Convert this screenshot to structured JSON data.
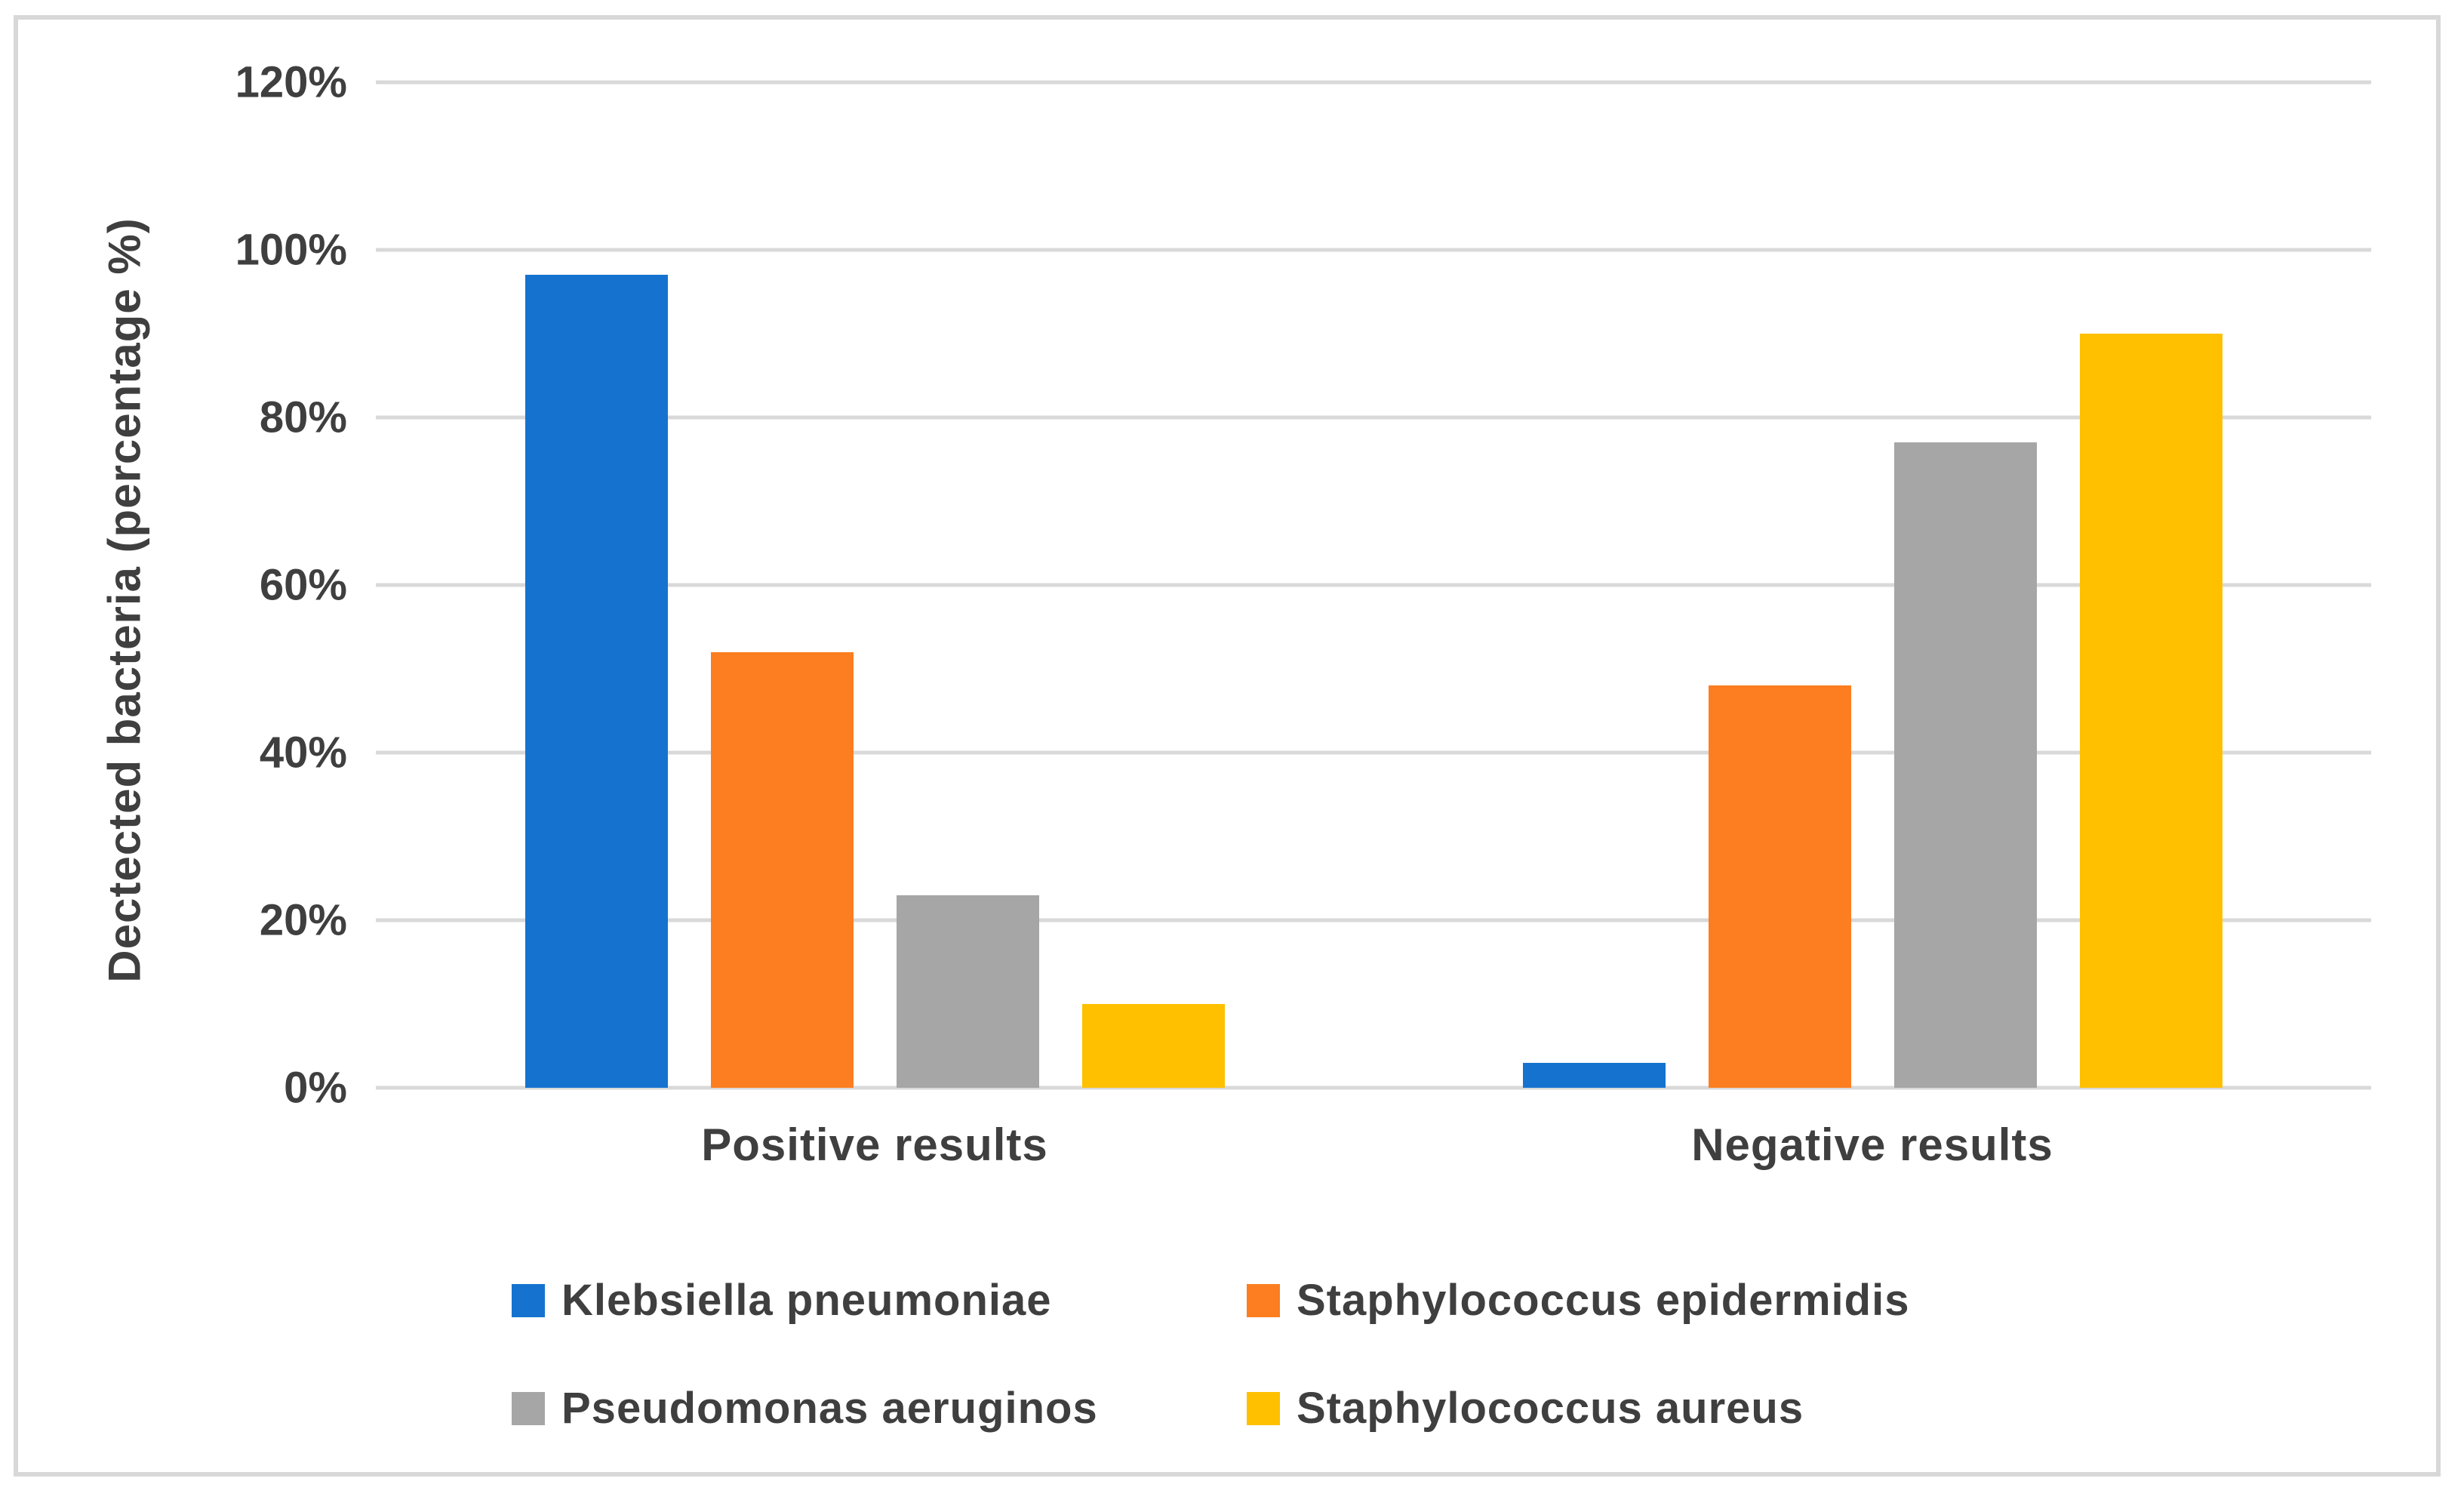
{
  "chart_data": {
    "type": "bar",
    "title": "",
    "xlabel": "",
    "ylabel": "Dectected bacteria (percentage %)",
    "categories": [
      "Positive results",
      "Negative results"
    ],
    "series": [
      {
        "name": "Klebsiella pneumoniae",
        "color": "#1573CF",
        "values": [
          97,
          3
        ]
      },
      {
        "name": "Staphylococcus epidermidis",
        "color": "#FC7E20",
        "values": [
          52,
          48
        ]
      },
      {
        "name": "Pseudomonas aeruginos",
        "color": "#A6A6A6",
        "values": [
          23,
          77
        ]
      },
      {
        "name": "Staphylococcus aureus",
        "color": "#FFC000",
        "values": [
          10,
          90
        ]
      }
    ],
    "ylim": [
      0,
      120
    ],
    "ytick_step": 20,
    "yticks": [
      "0%",
      "20%",
      "40%",
      "60%",
      "80%",
      "100%",
      "120%"
    ],
    "grid": true,
    "legend_position": "bottom",
    "legend_columns": 2
  },
  "colors": {
    "background": "#FFFFFF",
    "frame_border": "#D8D8D8",
    "gridline": "#D9D9D9",
    "text": "#3F3F3F"
  }
}
